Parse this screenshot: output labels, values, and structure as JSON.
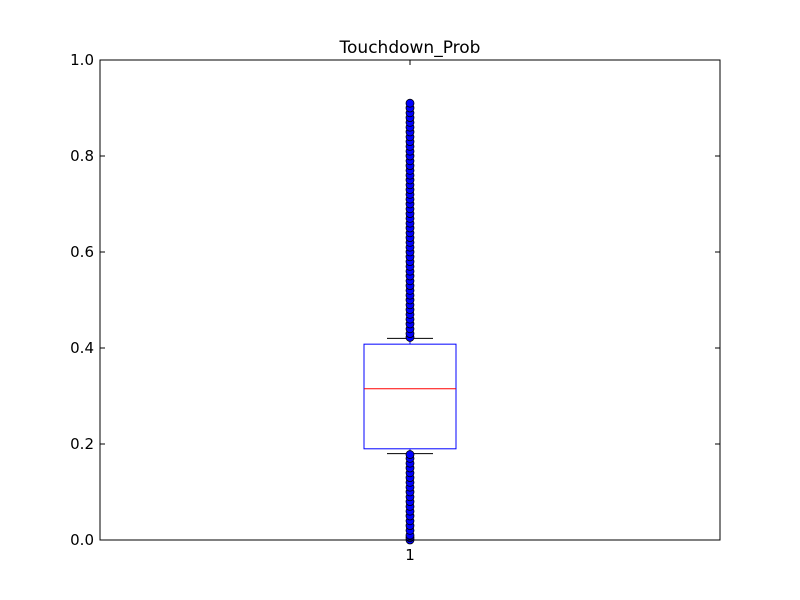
{
  "chart_data": {
    "type": "box",
    "title": "Touchdown_Prob",
    "xlabel": "",
    "ylabel": "",
    "ylim": [
      0.0,
      1.0
    ],
    "yticks": [
      0.0,
      0.2,
      0.4,
      0.6,
      0.8,
      1.0
    ],
    "yticklabels": [
      "0.0",
      "0.2",
      "0.4",
      "0.6",
      "0.8",
      "1.0"
    ],
    "categories": [
      "1"
    ],
    "grid": false,
    "legend": "none",
    "boxes": [
      {
        "category": "1",
        "whisker_low": 0.18,
        "q1": 0.19,
        "median": 0.315,
        "q3": 0.408,
        "whisker_high": 0.42,
        "fliers_low": [
          0.0,
          0.005,
          0.01,
          0.02,
          0.03,
          0.04,
          0.05,
          0.06,
          0.07,
          0.08,
          0.09,
          0.1,
          0.11,
          0.12,
          0.13,
          0.14,
          0.15,
          0.16,
          0.17,
          0.178
        ],
        "fliers_high": [
          0.422,
          0.43,
          0.44,
          0.45,
          0.46,
          0.47,
          0.48,
          0.49,
          0.5,
          0.51,
          0.52,
          0.53,
          0.54,
          0.55,
          0.56,
          0.57,
          0.58,
          0.59,
          0.6,
          0.61,
          0.62,
          0.63,
          0.64,
          0.65,
          0.66,
          0.67,
          0.68,
          0.69,
          0.7,
          0.71,
          0.72,
          0.73,
          0.74,
          0.75,
          0.76,
          0.77,
          0.78,
          0.79,
          0.8,
          0.81,
          0.82,
          0.83,
          0.84,
          0.85,
          0.86,
          0.87,
          0.88,
          0.89,
          0.9,
          0.91
        ]
      }
    ],
    "colors": {
      "box": "#0000ff",
      "median": "#ff0000",
      "whisker": "#000000",
      "flier_fill": "#0000ff",
      "flier_edge": "#000000"
    }
  }
}
